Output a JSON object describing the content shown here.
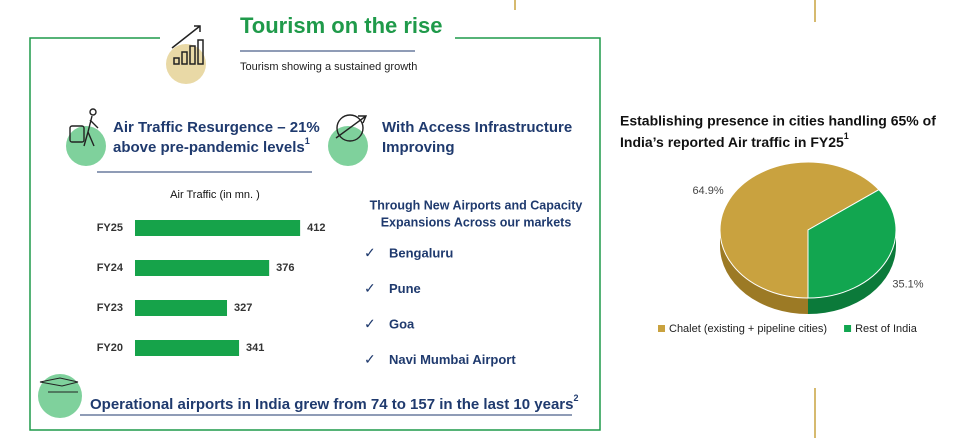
{
  "header": {
    "title": "Tourism on the rise",
    "subtitle": "Tourism showing a sustained growth"
  },
  "air_traffic": {
    "heading": [
      "Air Traffic Resurgence – 21%",
      "above pre-pandemic levels"
    ],
    "footnote": "1"
  },
  "infrastructure": {
    "heading": [
      "With Access Infrastructure",
      "Improving"
    ],
    "intro": [
      "Through New Airports and Capacity",
      "Expansions Across our markets"
    ],
    "markets": [
      "Bengaluru",
      "Pune",
      "Goa",
      "Navi Mumbai Airport"
    ]
  },
  "footer": {
    "text": "Operational airports in India grew from 74 to 157 in the last 10 years",
    "footnote": "2"
  },
  "chart_data": [
    {
      "type": "bar",
      "orientation": "horizontal",
      "title": "Air Traffic  (in mn. )",
      "categories": [
        "FY25",
        "FY24",
        "FY23",
        "FY20"
      ],
      "values": [
        412,
        376,
        327,
        341
      ],
      "color": "#16a34a",
      "xlim": [
        220,
        420
      ]
    },
    {
      "type": "pie",
      "title": [
        "Establishing presence in cities handling 65% of",
        "India’s reported Air traffic in FY25"
      ],
      "footnote": "1",
      "categories": [
        "Chalet (existing + pipeline cities)",
        "Rest of India"
      ],
      "values": [
        64.9,
        35.1
      ],
      "value_labels": [
        "64.9%",
        "35.1%"
      ],
      "colors": [
        "#c9a23f",
        "#12a650"
      ],
      "legend": "bottom"
    }
  ]
}
